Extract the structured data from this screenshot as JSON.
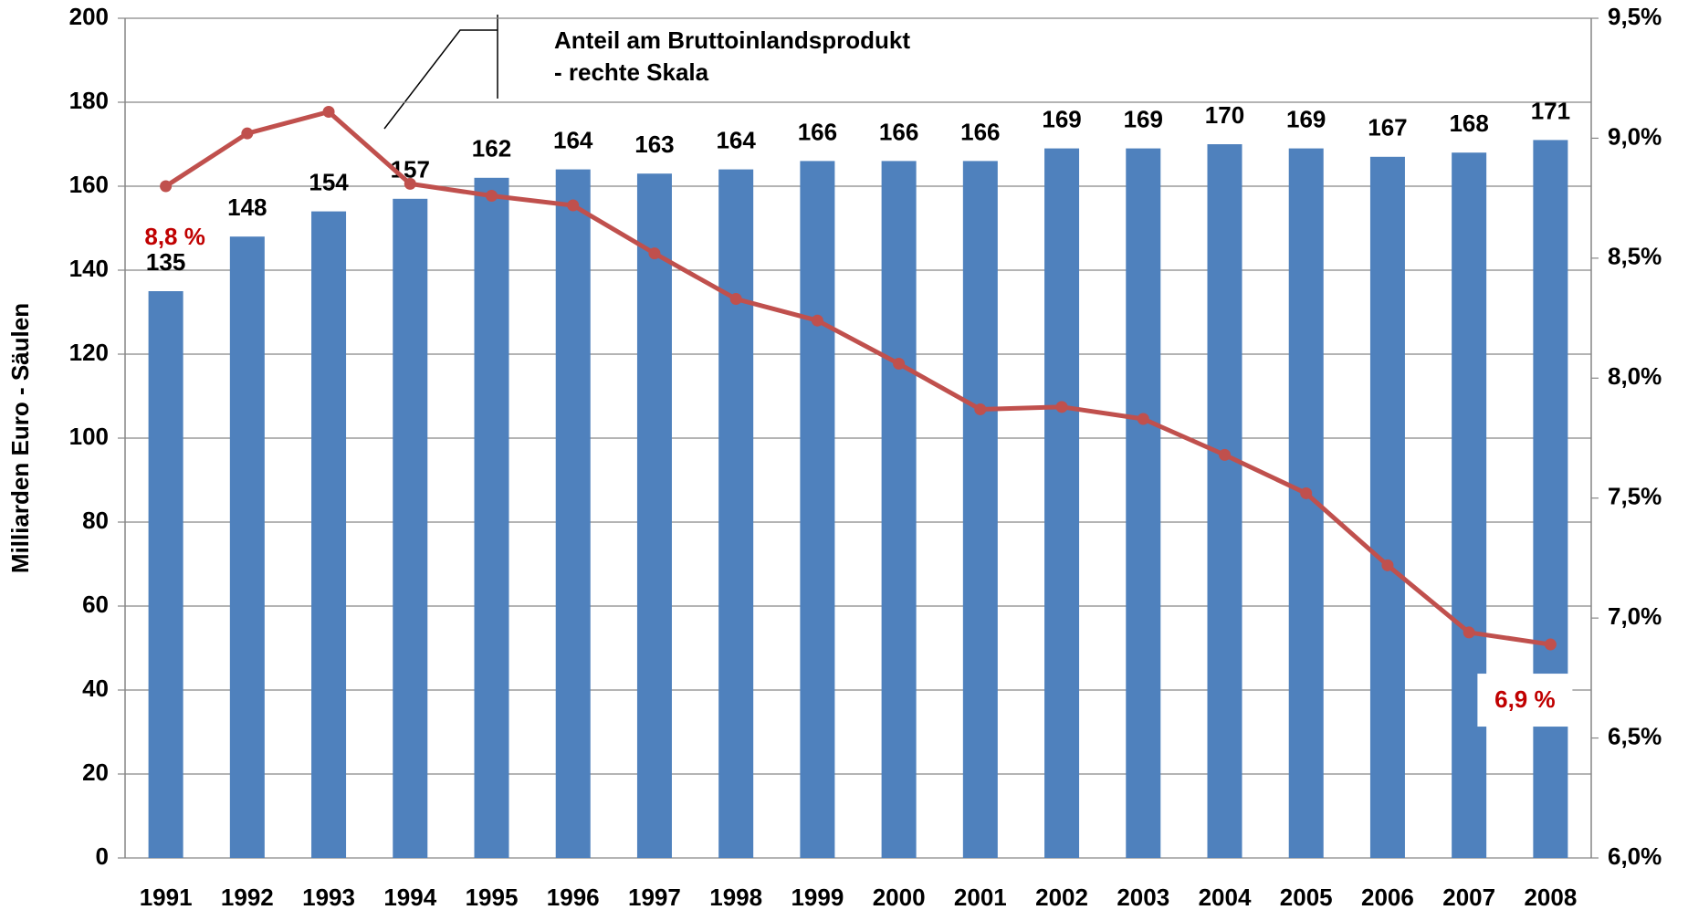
{
  "chart_data": {
    "type": "bar",
    "y_label": "Milliarden Euro - Säulen",
    "annotations": [
      "Anteil am Bruttoinlandsprodukt",
      "- rechte Skala"
    ],
    "categories": [
      "1991",
      "1992",
      "1993",
      "1994",
      "1995",
      "1996",
      "1997",
      "1998",
      "1999",
      "2000",
      "2001",
      "2002",
      "2003",
      "2004",
      "2005",
      "2006",
      "2007",
      "2008"
    ],
    "series": [
      {
        "type": "bar",
        "color": "#4f81bd",
        "values": [
          135,
          148,
          154,
          157,
          162,
          164,
          163,
          164,
          166,
          166,
          166,
          169,
          169,
          170,
          169,
          167,
          168,
          171
        ]
      },
      {
        "type": "line",
        "axis": "y2",
        "color": "#c0504d",
        "values": [
          8.8,
          9.02,
          9.11,
          8.81,
          8.76,
          8.72,
          8.52,
          8.33,
          8.24,
          8.06,
          7.87,
          7.88,
          7.83,
          7.68,
          7.52,
          7.22,
          6.94,
          6.89
        ],
        "value_labels": [
          "8,8 %",
          null,
          null,
          null,
          null,
          null,
          null,
          null,
          null,
          null,
          null,
          null,
          null,
          null,
          null,
          null,
          null,
          "6,9 %"
        ]
      }
    ],
    "ylim": [
      0,
      200
    ],
    "yticks": [
      0,
      20,
      40,
      60,
      80,
      100,
      120,
      140,
      160,
      180,
      200
    ],
    "y2lim": [
      6.0,
      9.5
    ],
    "y2ticks": [
      {
        "value": 6.0,
        "label": "6,0%"
      },
      {
        "value": 6.5,
        "label": "6,5%"
      },
      {
        "value": 7.0,
        "label": "7,0%"
      },
      {
        "value": 7.5,
        "label": "7,5%"
      },
      {
        "value": 8.0,
        "label": "8,0%"
      },
      {
        "value": 8.5,
        "label": "8,5%"
      },
      {
        "value": 9.0,
        "label": "9,0%"
      },
      {
        "value": 9.5,
        "label": "9,5%"
      }
    ],
    "grid": true
  }
}
